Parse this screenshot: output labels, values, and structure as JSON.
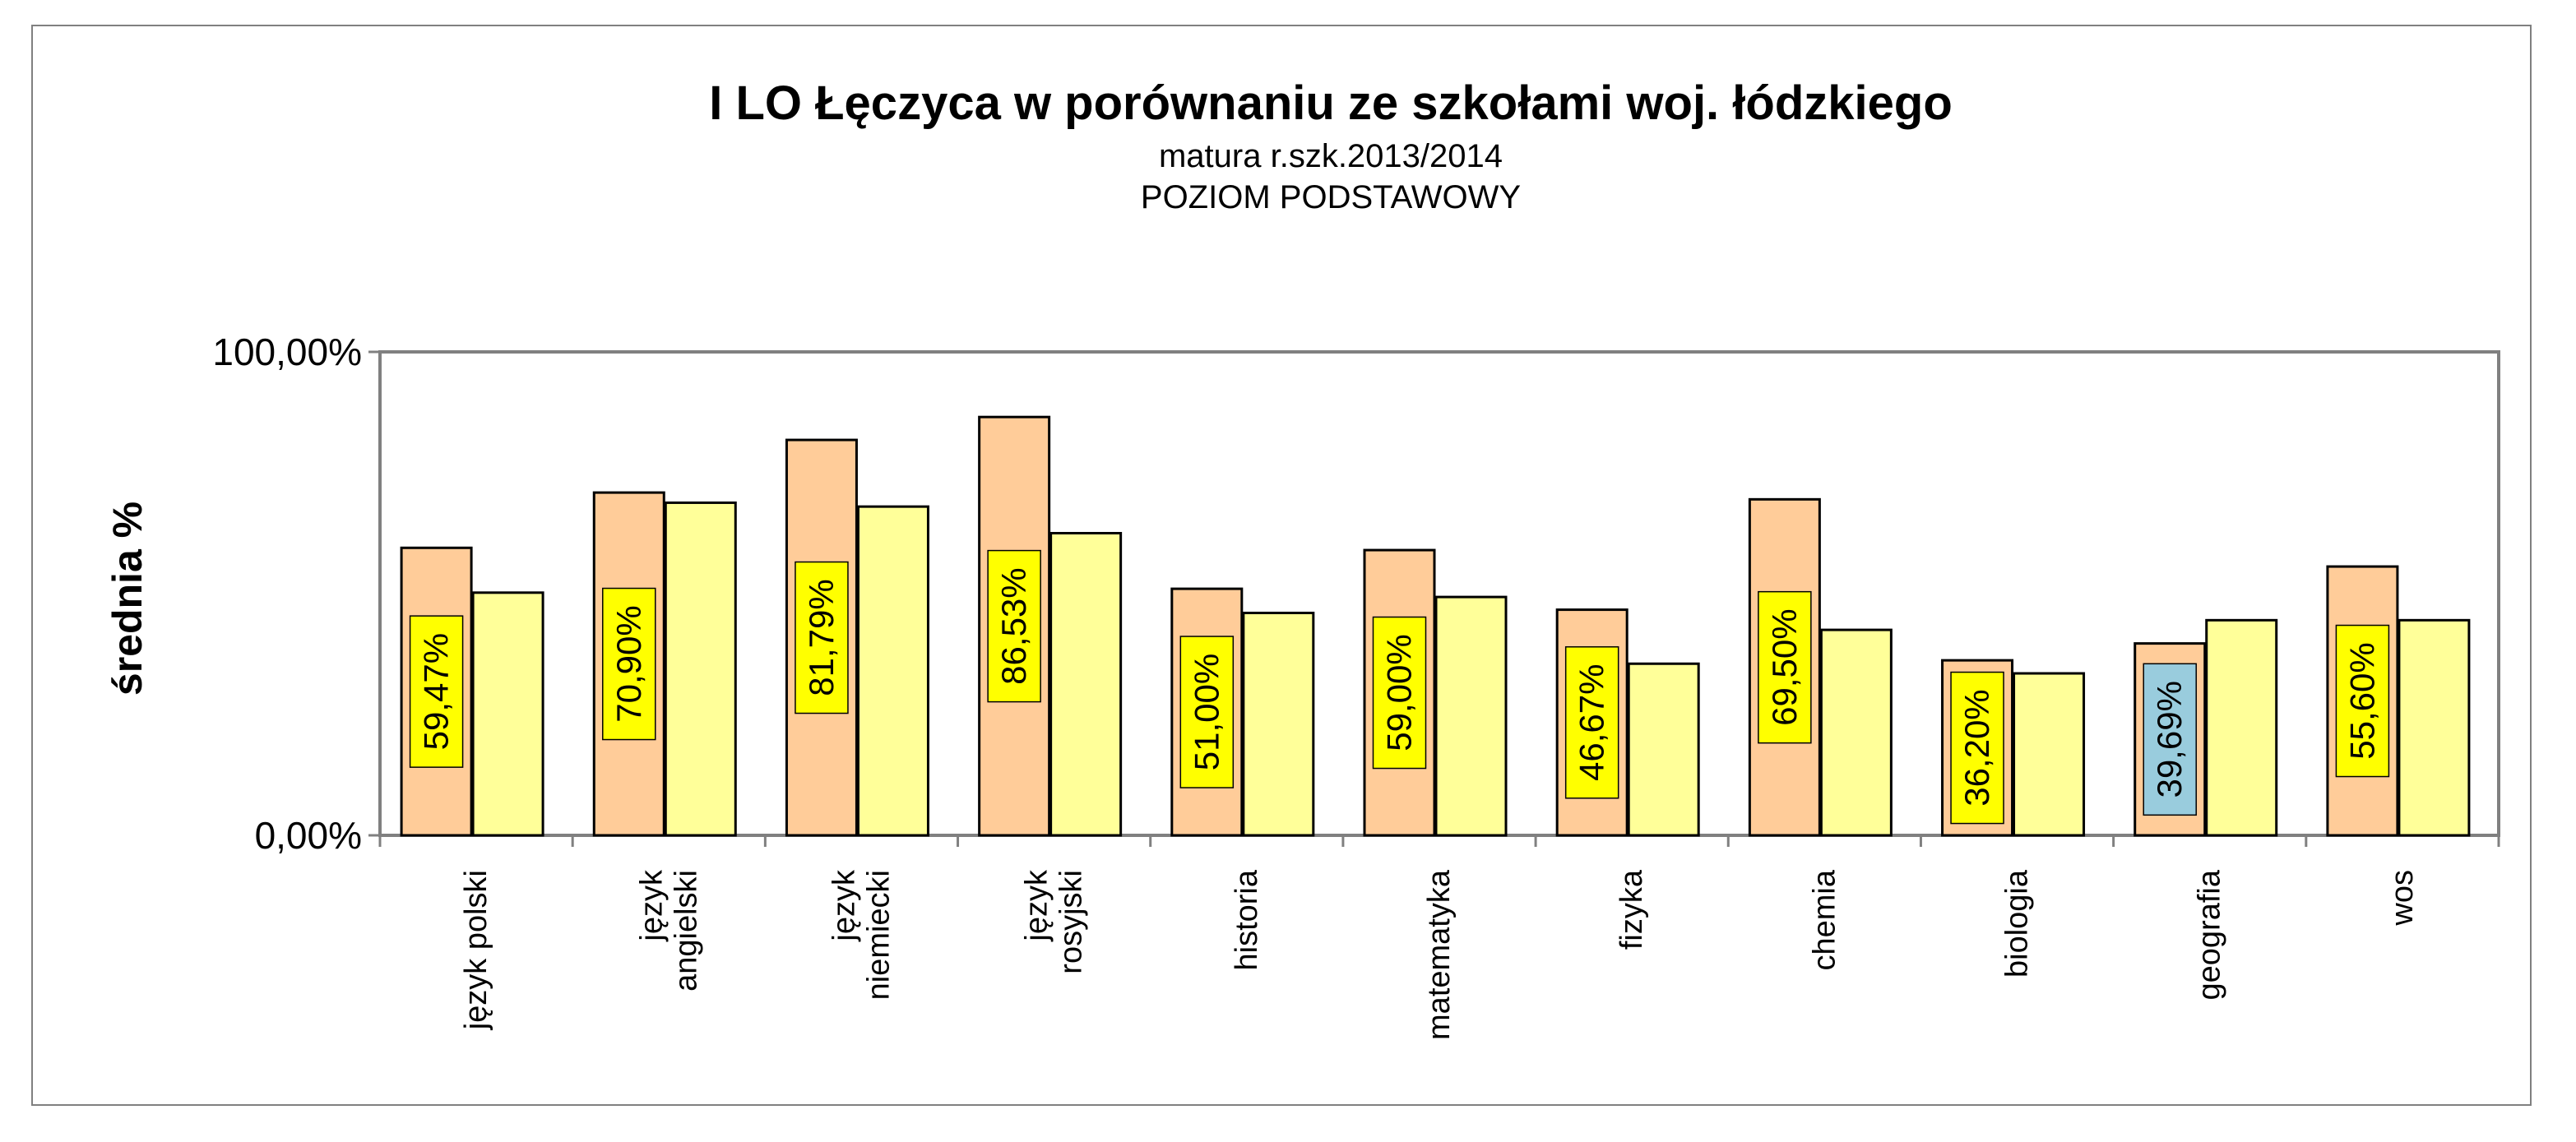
{
  "chart_data": {
    "type": "bar",
    "title": "I LO Łęczyca w porównaniu ze szkołami woj. łódzkiego",
    "subtitles": [
      "matura r.szk.2013/2014",
      "POZIOM PODSTAWOWY"
    ],
    "ylabel": "średnia %",
    "ylim": [
      0,
      100
    ],
    "y_ticks": [
      {
        "value": 0,
        "label": "0,00%"
      },
      {
        "value": 100,
        "label": "100,00%"
      }
    ],
    "categories": [
      [
        "język polski"
      ],
      [
        "język",
        "angielski"
      ],
      [
        "język",
        "niemiecki"
      ],
      [
        "język",
        "rosyjski"
      ],
      [
        "historia"
      ],
      [
        "matematyka"
      ],
      [
        "fizyka"
      ],
      [
        "chemia"
      ],
      [
        "biologia"
      ],
      [
        "geografia"
      ],
      [
        "wos"
      ]
    ],
    "series": [
      {
        "values": [
          59.47,
          70.9,
          81.79,
          86.53,
          51.0,
          59.0,
          46.67,
          69.5,
          36.2,
          39.69,
          55.6
        ],
        "data_labels": [
          "59,47%",
          "70,90%",
          "81,79%",
          "86,53%",
          "51,00%",
          "59,00%",
          "46,67%",
          "69,50%",
          "36,20%",
          "39,69%",
          "55,60%"
        ],
        "color": "#FFCC99",
        "label_colors": [
          "#FFFF00",
          "#FFFF00",
          "#FFFF00",
          "#FFFF00",
          "#FFFF00",
          "#FFFF00",
          "#FFFF00",
          "#FFFF00",
          "#FFFF00",
          "#99CCDD",
          "#FFFF00"
        ]
      },
      {
        "values": [
          50.2,
          68.8,
          68.0,
          62.5,
          46.0,
          49.3,
          35.5,
          42.5,
          33.5,
          44.5,
          44.5
        ],
        "color": "#FFFF99"
      }
    ],
    "grid": false,
    "legend": "none"
  }
}
